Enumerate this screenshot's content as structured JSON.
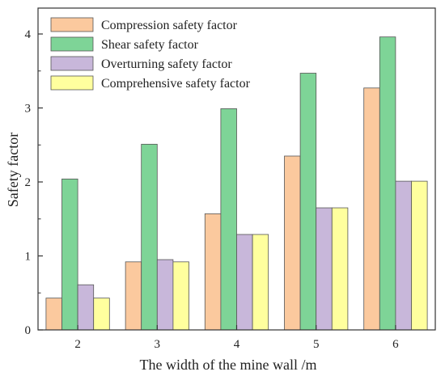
{
  "chart_data": {
    "type": "bar",
    "xlabel": "The width of the mine wall  /m",
    "ylabel": "Safety factor",
    "categories": [
      "2",
      "3",
      "4",
      "5",
      "6"
    ],
    "ylim": [
      0,
      4.35
    ],
    "yticks": [
      "0",
      "1",
      "2",
      "3",
      "4"
    ],
    "grid": false,
    "legend_position": "top-left",
    "series": [
      {
        "name": "Compression safety factor",
        "color": "#FBC99E",
        "values": [
          0.43,
          0.92,
          1.57,
          2.35,
          3.27
        ]
      },
      {
        "name": "Shear safety factor",
        "color": "#7ED497",
        "values": [
          2.04,
          2.51,
          2.99,
          3.47,
          3.96
        ]
      },
      {
        "name": "Overturning safety factor",
        "color": "#C8B7DA",
        "values": [
          0.61,
          0.95,
          1.29,
          1.65,
          2.01
        ]
      },
      {
        "name": "Comprehensive safety factor",
        "color": "#FFFF9E",
        "values": [
          0.43,
          0.92,
          1.29,
          1.65,
          2.01
        ]
      }
    ]
  }
}
